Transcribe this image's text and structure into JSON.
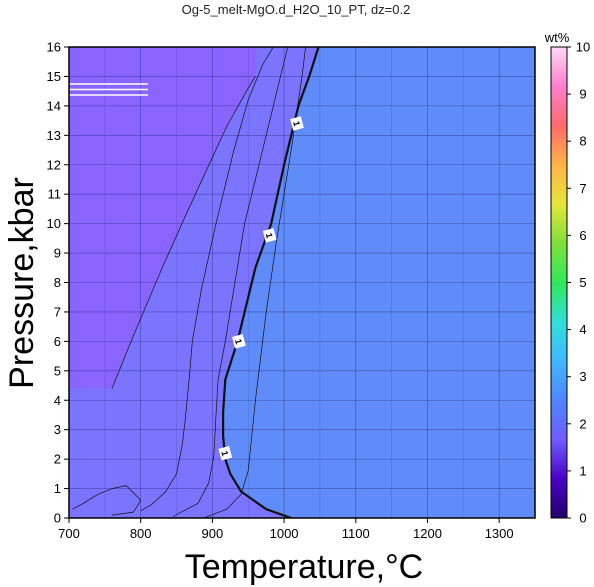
{
  "chart_data": {
    "type": "heatmap",
    "title": "Og-5_melt-MgO.d_H2O_10_PT, dz=0.2",
    "xlabel": "Temperature,°C",
    "ylabel": "Pressure,kbar",
    "xlim": [
      700,
      1350
    ],
    "ylim": [
      0,
      16
    ],
    "x_ticks": [
      "700",
      "800",
      "900",
      "1000",
      "1100",
      "1200",
      "1300"
    ],
    "y_ticks": [
      "0",
      "1",
      "2",
      "3",
      "4",
      "5",
      "6",
      "7",
      "8",
      "9",
      "10",
      "11",
      "12",
      "13",
      "14",
      "15",
      "16"
    ],
    "grid": true,
    "colorbar": {
      "label": "wt%",
      "min": 0,
      "max": 10,
      "ticks": [
        "0",
        "1",
        "2",
        "3",
        "4",
        "5",
        "6",
        "7",
        "8",
        "9",
        "10"
      ],
      "colors": [
        "#20006e",
        "#4a00c8",
        "#6f5cff",
        "#4f86ff",
        "#3fb8ff",
        "#2fe0d8",
        "#30e85a",
        "#7ee03a",
        "#e6e63a",
        "#ffb347",
        "#ff6a6a",
        "#ff7fd0",
        "#ffd8f2"
      ]
    },
    "fill_colors": {
      "low_region": "#8a64ff",
      "mid_region": "#7a74ff",
      "high_region": "#5f8cf8"
    },
    "contours": [
      {
        "label": "",
        "points": [
          [
            705,
            0.3
          ],
          [
            720,
            0.5
          ],
          [
            740,
            0.8
          ],
          [
            760,
            1.0
          ],
          [
            780,
            1.1
          ],
          [
            800,
            0.6
          ],
          [
            790,
            0.2
          ],
          [
            760,
            0.1
          ]
        ]
      },
      {
        "label": "",
        "points": [
          [
            760,
            4.4
          ],
          [
            790,
            6.2
          ],
          [
            830,
            8.5
          ],
          [
            865,
            10.4
          ],
          [
            920,
            13.3
          ],
          [
            950,
            14.6
          ],
          [
            960,
            15.0
          ]
        ]
      },
      {
        "label": "",
        "points": [
          [
            800,
            0.25
          ],
          [
            815,
            0.45
          ],
          [
            835,
            0.9
          ],
          [
            850,
            1.5
          ],
          [
            858,
            2.5
          ],
          [
            862,
            3.3
          ],
          [
            868,
            4.8
          ],
          [
            872,
            6.0
          ],
          [
            885,
            7.8
          ],
          [
            905,
            10.0
          ],
          [
            930,
            12.5
          ],
          [
            950,
            14.2
          ],
          [
            970,
            15.4
          ],
          [
            985,
            16.0
          ]
        ]
      },
      {
        "label": "",
        "points": [
          [
            845,
            0.05
          ],
          [
            880,
            0.5
          ],
          [
            895,
            1.2
          ],
          [
            902,
            2.1
          ],
          [
            905,
            3.5
          ],
          [
            908,
            4.7
          ],
          [
            918,
            6.0
          ],
          [
            928,
            7.5
          ],
          [
            945,
            10.0
          ],
          [
            965,
            12.0
          ],
          [
            990,
            14.5
          ],
          [
            1005,
            16.0
          ]
        ]
      },
      {
        "label": "",
        "points": [
          [
            890,
            0.02
          ],
          [
            920,
            0.3
          ],
          [
            940,
            0.8
          ],
          [
            950,
            1.6
          ],
          [
            955,
            2.8
          ],
          [
            960,
            4.0
          ],
          [
            965,
            5.0
          ],
          [
            975,
            7.0
          ],
          [
            990,
            9.5
          ],
          [
            1010,
            12.5
          ],
          [
            1025,
            15.0
          ],
          [
            1030,
            16.0
          ]
        ]
      },
      {
        "label": "1",
        "points": [
          [
            1010,
            0.0
          ],
          [
            975,
            0.3
          ],
          [
            940,
            0.9
          ],
          [
            925,
            1.5
          ],
          [
            918,
            2.0
          ],
          [
            915,
            2.8
          ],
          [
            915,
            3.6
          ],
          [
            918,
            4.7
          ],
          [
            935,
            6.0
          ],
          [
            960,
            8.5
          ],
          [
            982,
            10.0
          ],
          [
            1000,
            12.0
          ],
          [
            1020,
            14.0
          ],
          [
            1035,
            15.0
          ],
          [
            1048,
            16.0
          ]
        ],
        "label_at": [
          [
            918,
            2.2
          ],
          [
            937,
            6.0
          ],
          [
            980,
            9.6
          ],
          [
            1018,
            13.4
          ]
        ]
      }
    ]
  }
}
